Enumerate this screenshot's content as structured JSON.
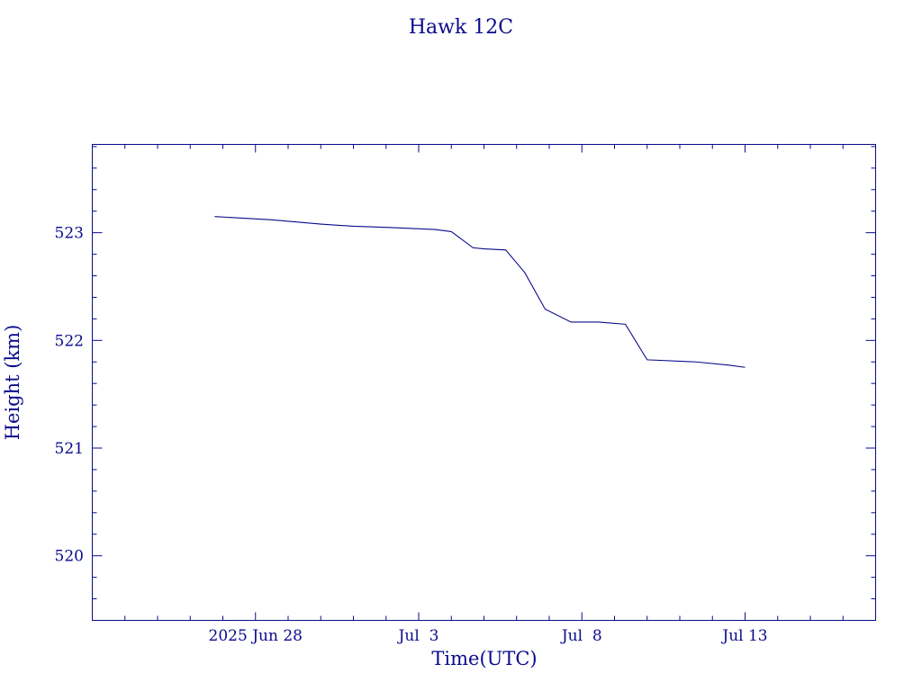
{
  "chart_data": {
    "type": "line",
    "title": "Hawk 12C",
    "xlabel": "Time(UTC)",
    "ylabel": "Height (km)",
    "x_tick_labels": [
      "2025 Jun 28",
      "Jul  3",
      "Jul  8",
      "Jul 13"
    ],
    "x_ticks": [
      "2025-06-28",
      "2025-07-03",
      "2025-07-08",
      "2025-07-13"
    ],
    "y_tick_labels": [
      "523",
      "522",
      "521",
      "520"
    ],
    "y_ticks": [
      523,
      522,
      521,
      520
    ],
    "xlim": [
      "2025-06-23",
      "2025-07-17"
    ],
    "ylim": [
      519.4,
      523.82
    ],
    "grid": false,
    "series": [
      {
        "x": [
          "2025-06-26 18:00",
          "2025-06-28 12:00",
          "2025-06-30 00:00",
          "2025-07-01 00:00",
          "2025-07-02 00:00",
          "2025-07-03 12:00",
          "2025-07-04 00:00",
          "2025-07-04 16:00",
          "2025-07-05 00:00",
          "2025-07-05 16:00",
          "2025-07-06 06:00",
          "2025-07-06 21:00",
          "2025-07-07 16:00",
          "2025-07-08 12:00",
          "2025-07-09 08:00",
          "2025-07-10 00:00",
          "2025-07-11 12:00",
          "2025-07-12 12:00",
          "2025-07-13 00:00"
        ],
        "y": [
          523.15,
          523.12,
          523.08,
          523.06,
          523.05,
          523.03,
          523.01,
          522.86,
          522.85,
          522.84,
          522.63,
          522.29,
          522.17,
          522.17,
          522.15,
          521.82,
          521.8,
          521.77,
          521.75
        ]
      }
    ]
  }
}
